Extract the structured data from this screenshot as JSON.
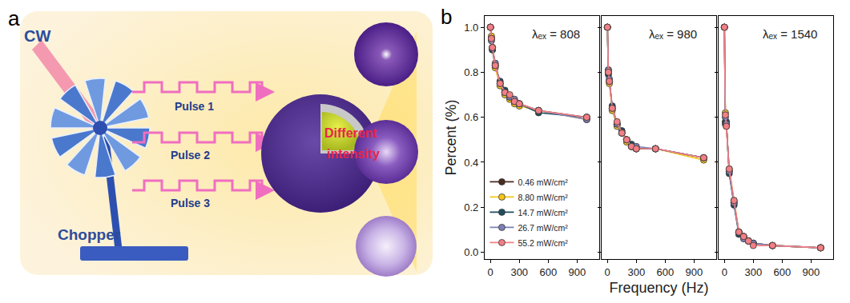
{
  "panel_labels": [
    "a",
    "b"
  ],
  "diagram": {
    "source": "CW",
    "device": "Chopper",
    "pulses": [
      "Pulse 1",
      "Pulse 2",
      "Pulse 3"
    ],
    "note": [
      "Different",
      "intensity"
    ]
  },
  "chart_data": [
    {
      "type": "line",
      "title": "λₑₓ = 808",
      "ylabel": "Percent (%)",
      "legend": "lower left",
      "marker": "circle",
      "x": [
        0,
        10,
        20,
        50,
        100,
        150,
        200,
        250,
        300,
        500,
        1000
      ],
      "xlim": [
        -60,
        1130
      ],
      "xticks": [
        0,
        300,
        600,
        900
      ],
      "ylim": [
        -0.03,
        1.05
      ],
      "yticks": [
        {
          "value": 0,
          "label": "0.0"
        },
        0.2,
        0.4,
        0.6,
        0.8,
        {
          "value": 1,
          "label": "1.0"
        }
      ],
      "series": [
        {
          "name": "0.46 mW/cm²",
          "color": "#4a2a20",
          "values": [
            1.0,
            0.95,
            0.91,
            0.83,
            0.75,
            0.71,
            0.69,
            0.67,
            0.66,
            0.63,
            0.6
          ]
        },
        {
          "name": "8.80 mW/cm²",
          "color": "#f5c518",
          "values": [
            1.0,
            0.96,
            0.9,
            0.82,
            0.74,
            0.7,
            0.68,
            0.66,
            0.65,
            0.63,
            0.59
          ]
        },
        {
          "name": "14.7 mW/cm²",
          "color": "#1f4e5f",
          "values": [
            1.0,
            0.95,
            0.9,
            0.83,
            0.76,
            0.72,
            0.69,
            0.67,
            0.66,
            0.62,
            0.6
          ]
        },
        {
          "name": "26.7 mW/cm²",
          "color": "#7d80b8",
          "values": [
            1.0,
            0.94,
            0.91,
            0.84,
            0.75,
            0.71,
            0.69,
            0.68,
            0.66,
            0.63,
            0.59
          ]
        },
        {
          "name": "55.2 mW/cm²",
          "color": "#f27f85",
          "values": [
            1.0,
            0.95,
            0.91,
            0.83,
            0.75,
            0.71,
            0.7,
            0.67,
            0.66,
            0.63,
            0.6
          ]
        }
      ]
    },
    {
      "type": "line",
      "title": "λₑₓ = 980",
      "xlabel": "Frequency (Hz)",
      "tick_labels": "x",
      "marker": "circle",
      "x": [
        0,
        10,
        20,
        50,
        100,
        150,
        200,
        250,
        300,
        500,
        1000
      ],
      "xlim": [
        -60,
        1130
      ],
      "xticks": [
        0,
        300,
        600,
        900
      ],
      "ylim": [
        -0.03,
        1.05
      ],
      "yticks": [
        {
          "value": 0,
          "label": "0.0"
        },
        0.2,
        0.4,
        0.6,
        0.8,
        {
          "value": 1,
          "label": "1.0"
        }
      ],
      "series": [
        {
          "name": "0.46 mW/cm²",
          "color": "#4a2a20",
          "values": [
            1.0,
            0.8,
            0.76,
            0.64,
            0.57,
            0.53,
            0.5,
            0.47,
            0.46,
            0.46,
            0.42
          ]
        },
        {
          "name": "8.80 mW/cm²",
          "color": "#f5c518",
          "values": [
            1.0,
            0.81,
            0.75,
            0.63,
            0.56,
            0.53,
            0.49,
            0.47,
            0.46,
            0.46,
            0.41
          ]
        },
        {
          "name": "14.7 mW/cm²",
          "color": "#1f4e5f",
          "values": [
            1.0,
            0.79,
            0.76,
            0.65,
            0.57,
            0.54,
            0.5,
            0.48,
            0.46,
            0.46,
            0.42
          ]
        },
        {
          "name": "26.7 mW/cm²",
          "color": "#7d80b8",
          "values": [
            1.0,
            0.81,
            0.77,
            0.64,
            0.57,
            0.53,
            0.5,
            0.47,
            0.47,
            0.46,
            0.42
          ]
        },
        {
          "name": "55.2 mW/cm²",
          "color": "#f27f85",
          "values": [
            1.0,
            0.8,
            0.76,
            0.64,
            0.58,
            0.53,
            0.5,
            0.47,
            0.46,
            0.46,
            0.42
          ]
        }
      ]
    },
    {
      "type": "line",
      "title": "λₑₓ = 1540",
      "tick_labels": "x",
      "marker": "circle",
      "x": [
        0,
        10,
        20,
        50,
        100,
        150,
        200,
        250,
        300,
        500,
        1000
      ],
      "xlim": [
        -60,
        1130
      ],
      "xticks": [
        0,
        300,
        600,
        900
      ],
      "ylim": [
        -0.03,
        1.05
      ],
      "yticks": [
        {
          "value": 0,
          "label": "0.0"
        },
        0.2,
        0.4,
        0.6,
        0.8,
        {
          "value": 1,
          "label": "1.0"
        }
      ],
      "series": [
        {
          "name": "0.46 mW/cm²",
          "color": "#4a2a20",
          "values": [
            1.0,
            0.58,
            0.57,
            0.36,
            0.22,
            0.09,
            0.07,
            0.05,
            0.04,
            0.03,
            0.02
          ]
        },
        {
          "name": "8.80 mW/cm²",
          "color": "#f5c518",
          "values": [
            1.0,
            0.62,
            0.56,
            0.37,
            0.23,
            0.09,
            0.07,
            0.05,
            0.04,
            0.03,
            0.02
          ]
        },
        {
          "name": "14.7 mW/cm²",
          "color": "#1f4e5f",
          "values": [
            1.0,
            0.57,
            0.58,
            0.35,
            0.21,
            0.08,
            0.07,
            0.05,
            0.04,
            0.03,
            0.02
          ]
        },
        {
          "name": "26.7 mW/cm²",
          "color": "#7d80b8",
          "values": [
            1.0,
            0.6,
            0.57,
            0.36,
            0.22,
            0.09,
            0.06,
            0.05,
            0.04,
            0.03,
            0.02
          ]
        },
        {
          "name": "55.2 mW/cm²",
          "color": "#f27f85",
          "values": [
            1.0,
            0.61,
            0.56,
            0.37,
            0.23,
            0.09,
            0.07,
            0.05,
            0.03,
            0.03,
            0.02
          ]
        }
      ]
    }
  ]
}
